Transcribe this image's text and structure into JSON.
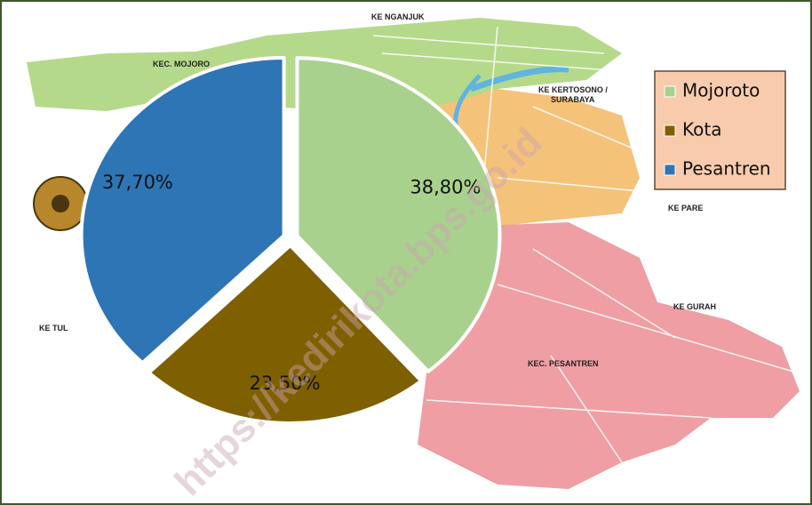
{
  "chart_data": {
    "type": "pie",
    "categories": [
      "Mojoroto",
      "Kota",
      "Pesantren"
    ],
    "series": [
      {
        "values": [
          38.8,
          23.5,
          37.7
        ],
        "value_labels": [
          "38,80%",
          "23,50%",
          "37,70%"
        ],
        "colors": [
          "#a9d18e",
          "#7f6000",
          "#2e75b6"
        ]
      }
    ],
    "legend": "right",
    "map_labels": [
      "KE NGANJUK",
      "KEC. MOJORO",
      "KE KERTOSONO /",
      "SURABAYA",
      "KE PARE",
      "KE GURAH",
      "KEC. PESANTREN",
      "KE TUL"
    ],
    "watermark": "https://kedirikota.bps.go.id"
  }
}
